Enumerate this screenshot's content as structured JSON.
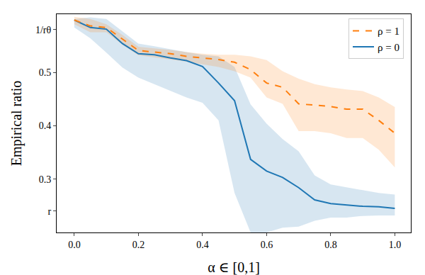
{
  "chart_data": {
    "type": "line",
    "x_label": "α ∈ [0,1]",
    "y_label": "Empirical ratio",
    "x": [
      0,
      0.05,
      0.1,
      0.15,
      0.2,
      0.25,
      0.3,
      0.35,
      0.4,
      0.45,
      0.5,
      0.55,
      0.6,
      0.65,
      0.7,
      0.75,
      0.8,
      0.85,
      0.9,
      0.95,
      1.0
    ],
    "series": [
      {
        "name": "ρ = 0",
        "color": "#1f77b4",
        "line_style": "solid",
        "values": [
          0.598,
          0.584,
          0.581,
          0.554,
          0.535,
          0.533,
          0.527,
          0.522,
          0.511,
          0.48,
          0.447,
          0.337,
          0.315,
          0.303,
          0.284,
          0.261,
          0.254,
          0.252,
          0.249,
          0.248,
          0.245
        ],
        "upper": [
          0.6,
          0.603,
          0.6,
          0.577,
          0.554,
          0.549,
          0.543,
          0.538,
          0.533,
          0.53,
          0.51,
          0.44,
          0.404,
          0.375,
          0.352,
          0.307,
          0.29,
          0.285,
          0.28,
          0.274,
          0.271
        ],
        "lower": [
          0.584,
          0.564,
          0.537,
          0.509,
          0.49,
          0.478,
          0.465,
          0.453,
          0.443,
          0.41,
          0.274,
          0.2,
          0.2,
          0.209,
          0.211,
          0.222,
          0.228,
          0.228,
          0.231,
          0.232,
          0.232
        ]
      },
      {
        "name": "ρ = 1",
        "color": "#ff7f0e",
        "line_style": "dashed",
        "values": [
          0.598,
          0.587,
          0.584,
          0.563,
          0.541,
          0.538,
          0.535,
          0.53,
          0.527,
          0.524,
          0.519,
          0.505,
          0.48,
          0.472,
          0.441,
          0.438,
          0.436,
          0.431,
          0.431,
          0.41,
          0.386
        ],
        "upper": [
          0.604,
          0.6,
          0.59,
          0.57,
          0.548,
          0.545,
          0.542,
          0.538,
          0.535,
          0.533,
          0.533,
          0.53,
          0.523,
          0.502,
          0.488,
          0.478,
          0.472,
          0.468,
          0.465,
          0.453,
          0.435
        ],
        "lower": [
          0.59,
          0.575,
          0.575,
          0.552,
          0.532,
          0.528,
          0.525,
          0.52,
          0.515,
          0.51,
          0.502,
          0.49,
          0.453,
          0.441,
          0.39,
          0.39,
          0.386,
          0.377,
          0.377,
          0.355,
          0.322
        ]
      }
    ],
    "xlim": [
      -0.055,
      1.05
    ],
    "ylim": [
      0.2,
      0.609
    ],
    "xticks": [
      {
        "value": 0,
        "label": "0.0"
      },
      0.2,
      0.4,
      0.6,
      0.8,
      {
        "value": 1,
        "label": "1.0"
      }
    ],
    "yticks": [
      {
        "value": 0.24,
        "label": "r"
      },
      0.3,
      0.4,
      0.5,
      {
        "value": 0.58,
        "label": "1/rθ"
      }
    ],
    "grid": false,
    "legend": "upper right"
  }
}
